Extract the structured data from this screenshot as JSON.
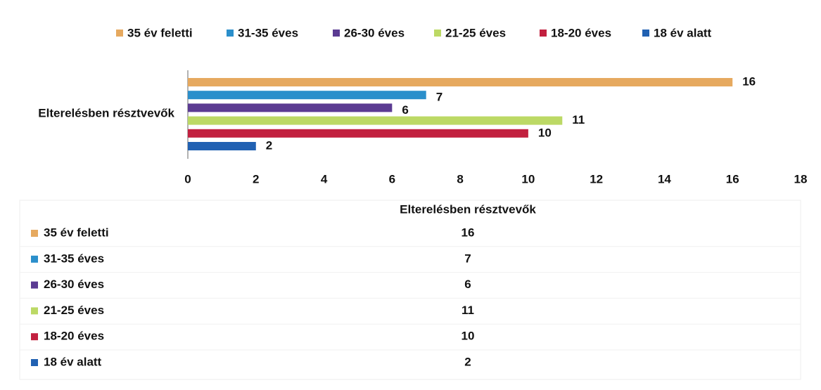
{
  "chart_data": {
    "type": "bar",
    "categories": [
      "Elterelésben résztvevők"
    ],
    "series": [
      {
        "name": "35 év feletti",
        "color": "#e6a95f",
        "values": [
          16
        ]
      },
      {
        "name": "31-35 éves",
        "color": "#2b8fcb",
        "values": [
          7
        ]
      },
      {
        "name": "26-30 éves",
        "color": "#5b3b92",
        "values": [
          6
        ]
      },
      {
        "name": "21-25 éves",
        "color": "#bcd965",
        "values": [
          11
        ]
      },
      {
        "name": "18-20 éves",
        "color": "#c2203f",
        "values": [
          10
        ]
      },
      {
        "name": "18 év alatt",
        "color": "#2161b2",
        "values": [
          2
        ]
      }
    ],
    "xlim": [
      0,
      18
    ],
    "xticks": [
      0,
      2,
      4,
      6,
      8,
      10,
      12,
      14,
      16,
      18
    ],
    "legend": "top"
  }
}
